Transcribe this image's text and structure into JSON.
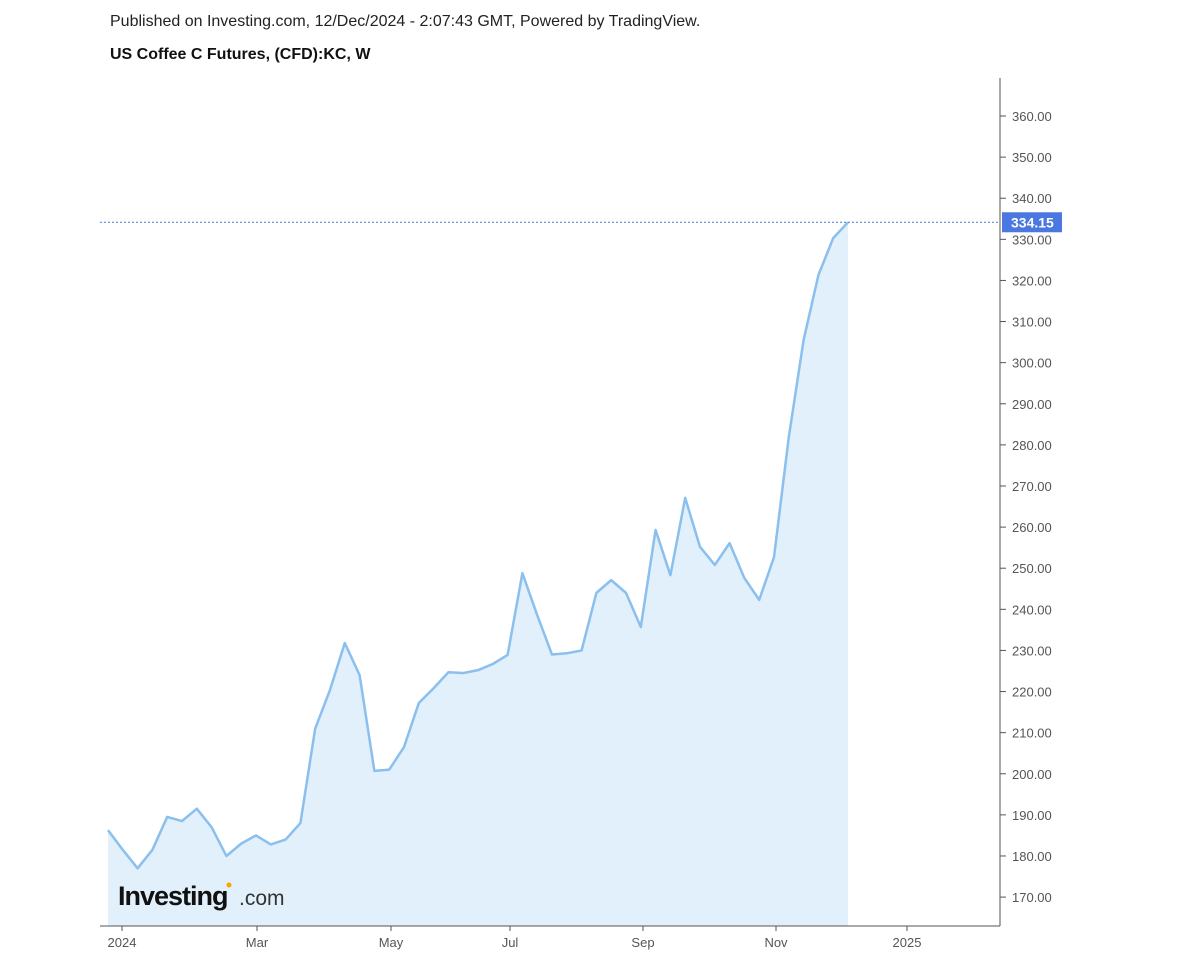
{
  "header": {
    "published": "Published on Investing.com, 12/Dec/2024 - 2:07:43 GMT, Powered by TradingView.",
    "symbol": "US Coffee C Futures, (CFD):KC, W"
  },
  "logo": {
    "text": "Investing",
    "suffix": ".com"
  },
  "colors": {
    "line": "#8bbfee",
    "fill": "#e1f0fa",
    "last_price_bg": "#4a78e0",
    "axis": "#555555"
  },
  "chart_data": {
    "type": "area",
    "title": "US Coffee C Futures, (CFD):KC, W",
    "xlabel": "",
    "ylabel": "",
    "ylim": [
      163,
      368
    ],
    "y_ticks": [
      "170.00",
      "180.00",
      "190.00",
      "200.00",
      "210.00",
      "220.00",
      "230.00",
      "240.00",
      "250.00",
      "260.00",
      "270.00",
      "280.00",
      "290.00",
      "300.00",
      "310.00",
      "320.00",
      "330.00",
      "340.00",
      "350.00",
      "360.00"
    ],
    "x_ticks": [
      "2024",
      "Mar",
      "May",
      "Jul",
      "Sep",
      "Nov",
      "2025"
    ],
    "grid": false,
    "last_price": "334.15",
    "x": [
      "2023-12-25",
      "2024-01-01",
      "2024-01-08",
      "2024-01-15",
      "2024-01-22",
      "2024-01-29",
      "2024-02-05",
      "2024-02-12",
      "2024-02-19",
      "2024-02-26",
      "2024-03-04",
      "2024-03-11",
      "2024-03-18",
      "2024-03-25",
      "2024-04-01",
      "2024-04-08",
      "2024-04-15",
      "2024-04-22",
      "2024-04-29",
      "2024-05-06",
      "2024-05-13",
      "2024-05-20",
      "2024-05-27",
      "2024-06-03",
      "2024-06-10",
      "2024-06-17",
      "2024-06-24",
      "2024-07-01",
      "2024-07-08",
      "2024-07-15",
      "2024-07-22",
      "2024-07-29",
      "2024-08-05",
      "2024-08-12",
      "2024-08-19",
      "2024-08-26",
      "2024-09-02",
      "2024-09-09",
      "2024-09-16",
      "2024-09-23",
      "2024-09-30",
      "2024-10-07",
      "2024-10-14",
      "2024-10-21",
      "2024-10-28",
      "2024-11-04",
      "2024-11-11",
      "2024-11-18",
      "2024-11-25",
      "2024-12-02",
      "2024-12-09"
    ],
    "values": [
      186.3,
      181.5,
      177.0,
      181.5,
      189.5,
      188.5,
      191.5,
      187.0,
      180.0,
      183.0,
      185.0,
      182.8,
      184.0,
      188.0,
      211.0,
      220.4,
      231.8,
      224.0,
      200.7,
      201.0,
      206.5,
      217.2,
      220.8,
      224.7,
      224.5,
      225.2,
      226.7,
      228.9,
      248.8,
      238.6,
      229.0,
      229.3,
      230.0,
      244.0,
      247.1,
      244.0,
      235.7,
      259.3,
      248.3,
      267.1,
      255.2,
      250.8,
      256.1,
      247.6,
      242.3,
      252.7,
      281.9,
      305.5,
      321.3,
      330.3,
      334.15
    ]
  }
}
